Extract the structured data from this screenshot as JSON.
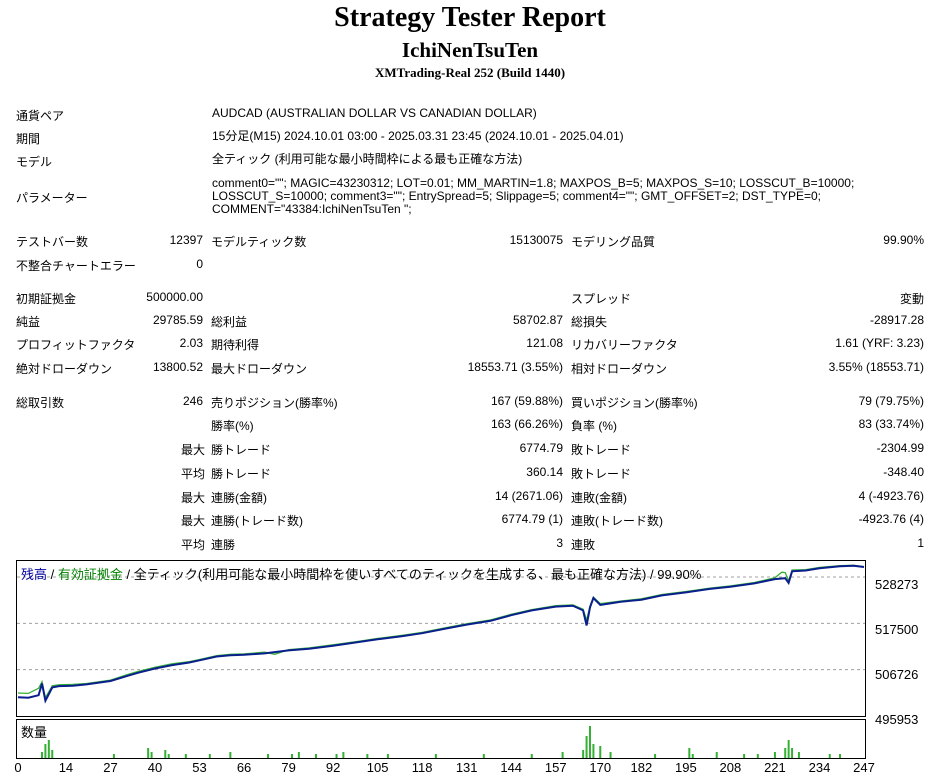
{
  "header": {
    "title": "Strategy Tester Report",
    "ea_name": "IchiNenTsuTen",
    "build": "XMTrading-Real 252 (Build 1440)"
  },
  "info": {
    "pair_label": "通貨ペア",
    "pair_value": "AUDCAD (AUSTRALIAN DOLLAR VS CANADIAN DOLLAR)",
    "period_label": "期間",
    "period_value": "15分足(M15) 2024.10.01 03:00 - 2025.03.31 23:45 (2024.10.01 - 2025.04.01)",
    "model_label": "モデル",
    "model_value": "全ティック (利用可能な最小時間枠による最も正確な方法)",
    "params_label": "パラメーター",
    "params_lines": [
      "comment0=\"\"; MAGIC=43230312; LOT=0.01; MM_MARTIN=1.8; MAXPOS_B=5; MAXPOS_S=10; LOSSCUT_B=10000;",
      "LOSSCUT_S=10000; comment3=\"\"; EntrySpread=5; Slippage=5; comment4=\"\"; GMT_OFFSET=2; DST_TYPE=0;",
      "COMMENT=\"43384:IchiNenTsuTen \";"
    ]
  },
  "stats": {
    "bars_label": "テストバー数",
    "bars": "12397",
    "ticks_label": "モデルティック数",
    "ticks": "15130075",
    "quality_label": "モデリング品質",
    "quality": "99.90%",
    "mismatch_label": "不整合チャートエラー",
    "mismatch": "0",
    "deposit_label": "初期証拠金",
    "deposit": "500000.00",
    "spread_label": "スプレッド",
    "spread": "変動",
    "net_label": "純益",
    "net": "29785.59",
    "gross_profit_label": "総利益",
    "gross_profit": "58702.87",
    "gross_loss_label": "総損失",
    "gross_loss": "-28917.28",
    "pf_label": "プロフィットファクタ",
    "pf": "2.03",
    "expected_label": "期待利得",
    "expected": "121.08",
    "recovery_label": "リカバリーファクタ",
    "recovery": "1.61 (YRF: 3.23)",
    "abs_dd_label": "絶対ドローダウン",
    "abs_dd": "13800.52",
    "max_dd_label": "最大ドローダウン",
    "max_dd": "18553.71 (3.55%)",
    "rel_dd_label": "相対ドローダウン",
    "rel_dd": "3.55% (18553.71)",
    "trades_label": "総取引数",
    "trades": "246",
    "short_label": "売りポジション(勝率%)",
    "short": "167 (59.88%)",
    "long_label": "買いポジション(勝率%)",
    "long": "79 (79.75%)",
    "win_rate_label": "勝率(%)",
    "win_rate": "163 (66.26%)",
    "loss_rate_label": "負率 (%)",
    "loss_rate": "83 (33.74%)",
    "max_label": "最大",
    "avg_label": "平均",
    "largest_win_label": "勝トレード",
    "largest_win": "6774.79",
    "largest_loss_label": "敗トレード",
    "largest_loss": "-2304.99",
    "avg_win_label": "勝トレード",
    "avg_win": "360.14",
    "avg_loss_label": "敗トレード",
    "avg_loss": "-348.40",
    "max_consec_win_money_label": "連勝(金額)",
    "max_consec_win_money": "14 (2671.06)",
    "max_consec_loss_money_label": "連敗(金額)",
    "max_consec_loss_money": "4 (-4923.76)",
    "max_consec_win_trades_label": "連勝(トレード数)",
    "max_consec_win_trades": "6774.79 (1)",
    "max_consec_loss_trades_label": "連敗(トレード数)",
    "max_consec_loss_trades": "-4923.76 (4)",
    "avg_consec_win_label": "連勝",
    "avg_consec_win": "3",
    "avg_consec_loss_label": "連敗",
    "avg_consec_loss": "1"
  },
  "chart_legend": {
    "balance": "残高",
    "sep1": " / ",
    "equity": "有効証拠金",
    "rest": " / 全ティック(利用可能な最小時間枠を使いすべてのティックを生成する、最も正確な方法) / 99.90%"
  },
  "volume_label": "数量",
  "colors": {
    "balance": "#0a1f8c",
    "equity": "#34b034",
    "volume": "#34b034",
    "grid": "#a0a0a0"
  },
  "chart_data": {
    "type": "line",
    "y_ticks": [
      "528273",
      "517500",
      "506726",
      "495953"
    ],
    "x_ticks": [
      "0",
      "14",
      "27",
      "40",
      "53",
      "66",
      "79",
      "92",
      "105",
      "118",
      "131",
      "144",
      "157",
      "170",
      "182",
      "195",
      "208",
      "221",
      "234",
      "247"
    ],
    "xlim": [
      0,
      247
    ],
    "ylim": [
      495953,
      532000
    ],
    "series": [
      {
        "key": "balance",
        "x": [
          0,
          3,
          6,
          7,
          8,
          10,
          12,
          16,
          20,
          27,
          32,
          35,
          40,
          45,
          50,
          53,
          58,
          62,
          66,
          72,
          79,
          85,
          92,
          100,
          105,
          112,
          118,
          125,
          131,
          138,
          144,
          150,
          157,
          162,
          165,
          166,
          167,
          168,
          170,
          176,
          182,
          188,
          195,
          202,
          208,
          215,
          221,
          224,
          225,
          226,
          230,
          234,
          240,
          244,
          247
        ],
        "y": [
          500300,
          500200,
          500800,
          503500,
          499500,
          502600,
          502900,
          503000,
          503300,
          504100,
          505300,
          506000,
          507000,
          507800,
          508400,
          508900,
          509800,
          510100,
          510200,
          510500,
          511200,
          511600,
          512300,
          513200,
          513800,
          514500,
          515200,
          516300,
          517200,
          518100,
          519400,
          520500,
          521400,
          521600,
          520500,
          517000,
          521200,
          523400,
          521800,
          522500,
          523000,
          524000,
          524700,
          525500,
          526000,
          526800,
          527800,
          528000,
          526900,
          529600,
          529800,
          530300,
          530800,
          530900,
          530600
        ]
      },
      {
        "key": "equity",
        "x": [
          0,
          3,
          6,
          7,
          8,
          10,
          12,
          16,
          20,
          27,
          32,
          35,
          40,
          45,
          50,
          53,
          58,
          62,
          66,
          72,
          75,
          79,
          85,
          92,
          100,
          105,
          112,
          118,
          125,
          131,
          138,
          144,
          150,
          157,
          162,
          165,
          166,
          167,
          168,
          170,
          176,
          182,
          188,
          195,
          202,
          208,
          215,
          221,
          223,
          224,
          225,
          226,
          230,
          234,
          240,
          244,
          247
        ],
        "y": [
          501300,
          501200,
          502400,
          503900,
          500200,
          503000,
          503200,
          503300,
          503500,
          504300,
          505600,
          506300,
          507300,
          508100,
          508600,
          509100,
          510000,
          510300,
          510400,
          510800,
          510300,
          511400,
          511800,
          512500,
          513400,
          514000,
          514700,
          515400,
          516500,
          517400,
          518300,
          519600,
          520700,
          521600,
          521800,
          520800,
          518200,
          521500,
          523600,
          522100,
          522700,
          523200,
          524200,
          524900,
          525700,
          526200,
          527000,
          528100,
          529400,
          529300,
          527400,
          529900,
          530000,
          530500,
          530900,
          531000,
          530700
        ]
      }
    ],
    "volume": {
      "x": [
        7,
        8,
        9,
        10,
        28,
        38,
        39,
        43,
        44,
        49,
        56,
        62,
        73,
        80,
        82,
        87,
        93,
        95,
        102,
        108,
        122,
        136,
        150,
        159,
        165,
        166,
        167,
        168,
        170,
        173,
        186,
        196,
        197,
        204,
        212,
        216,
        221,
        224,
        225,
        226,
        228,
        237,
        240
      ],
      "y": [
        3,
        7,
        9,
        4,
        2,
        5,
        3,
        4,
        2,
        2,
        2,
        3,
        2,
        2,
        3,
        2,
        2,
        3,
        2,
        2,
        2,
        2,
        2,
        3,
        4,
        11,
        16,
        7,
        6,
        3,
        2,
        5,
        2,
        3,
        2,
        2,
        3,
        5,
        9,
        5,
        3,
        2,
        2
      ],
      "ymax": 18
    }
  }
}
